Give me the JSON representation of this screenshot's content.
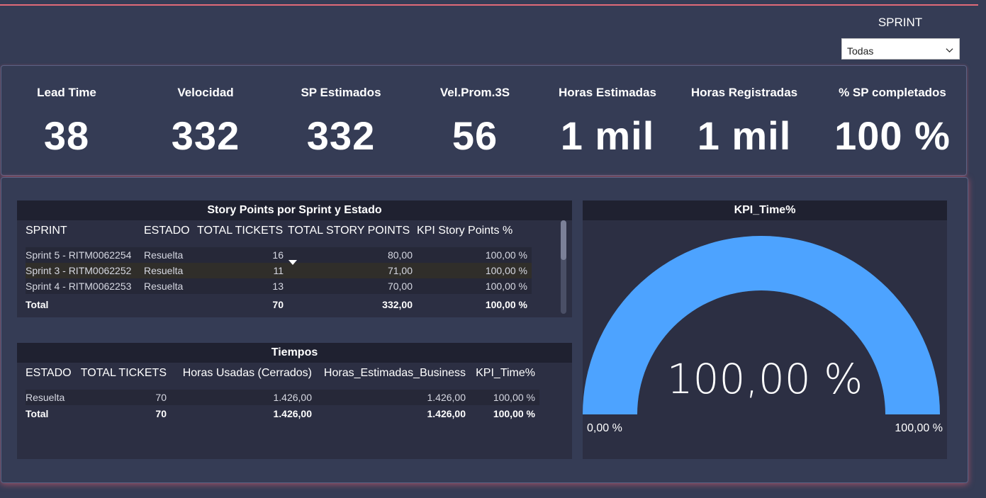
{
  "slicer": {
    "title": "SPRINT",
    "selected": "Todas"
  },
  "kpis": [
    {
      "label": "Lead Time",
      "value": "38"
    },
    {
      "label": "Velocidad",
      "value": "332"
    },
    {
      "label": "SP Estimados",
      "value": "332"
    },
    {
      "label": "Vel.Prom.3S",
      "value": "56"
    },
    {
      "label": "Horas Estimadas",
      "value": "1 mil"
    },
    {
      "label": "Horas Registradas",
      "value": "1 mil"
    },
    {
      "label": "% SP completados",
      "value": "100 %"
    }
  ],
  "story_points": {
    "title": "Story Points por Sprint y Estado",
    "headers": [
      "SPRINT",
      "ESTADO",
      "TOTAL TICKETS",
      "TOTAL STORY POINTS",
      "KPI Story Points %"
    ],
    "rows": [
      [
        "Sprint 5 - RITM0062254",
        "Resuelta",
        "16",
        "80,00",
        "100,00 %"
      ],
      [
        "Sprint 3 - RITM0062252",
        "Resuelta",
        "11",
        "71,00",
        "100,00 %"
      ],
      [
        "Sprint 4 - RITM0062253",
        "Resuelta",
        "13",
        "70,00",
        "100,00 %"
      ]
    ],
    "total": [
      "Total",
      "",
      "70",
      "332,00",
      "100,00 %"
    ]
  },
  "tiempos": {
    "title": "Tiempos",
    "headers": [
      "ESTADO",
      "TOTAL TICKETS",
      "Horas Usadas (Cerrados)",
      "Horas_Estimadas_Business",
      "KPI_Time%"
    ],
    "rows": [
      [
        "Resuelta",
        "70",
        "1.426,00",
        "1.426,00",
        "100,00 %"
      ]
    ],
    "total": [
      "Total",
      "70",
      "1.426,00",
      "1.426,00",
      "100,00 %"
    ]
  },
  "gauge": {
    "title": "KPI_Time%",
    "value_label": "100,00 %",
    "min_label": "0,00 %",
    "max_label": "100,00 %",
    "fraction": 1.0,
    "fill_color": "#4da3ff"
  },
  "colors": {
    "background": "#353c55",
    "accent_line": "#e06a78",
    "table_header": "#1f2130"
  }
}
